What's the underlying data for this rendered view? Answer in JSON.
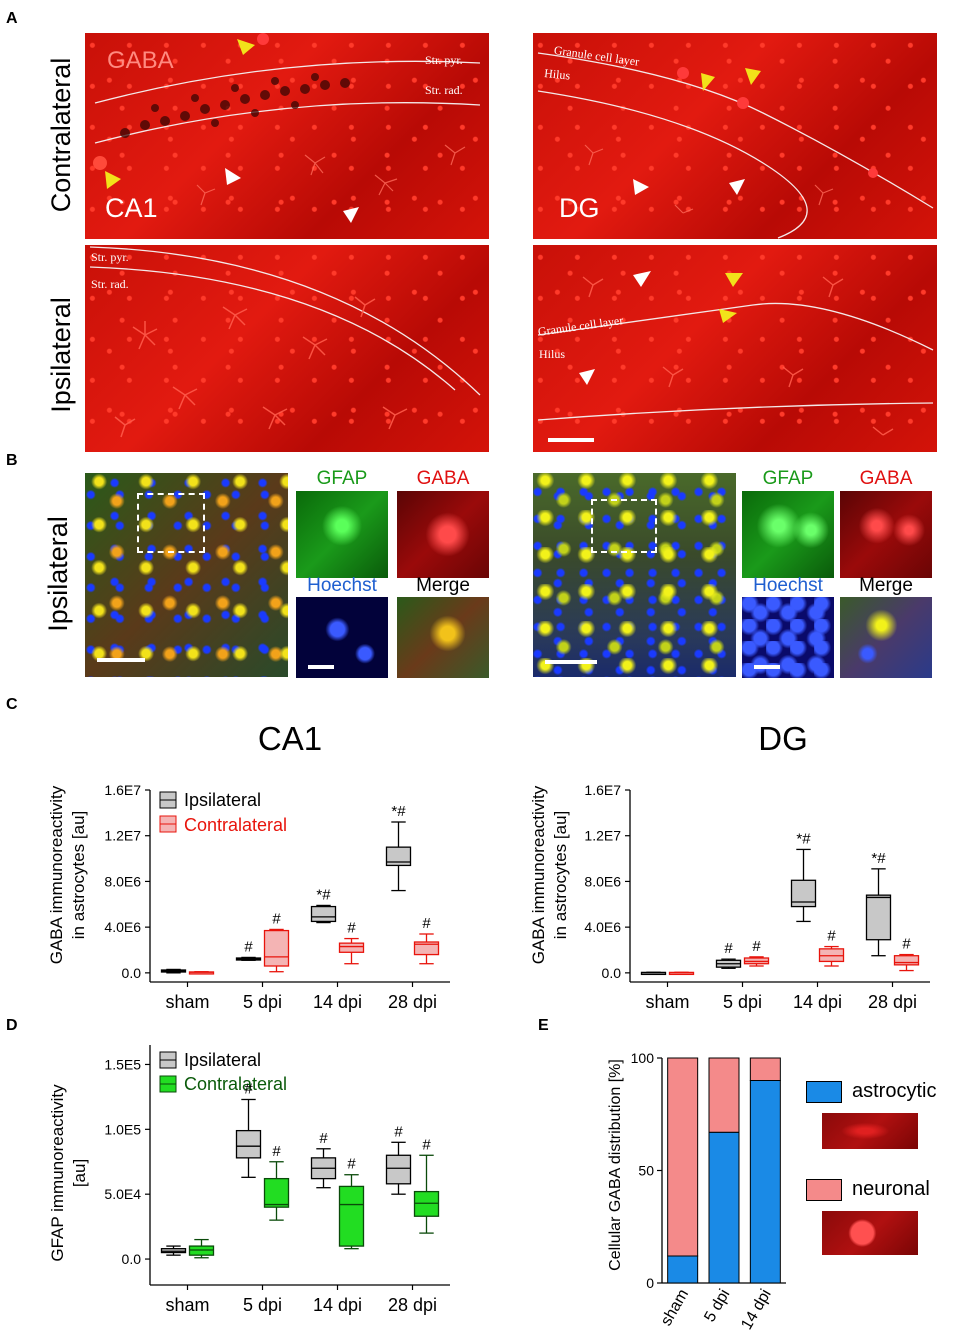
{
  "panels": {
    "A": "A",
    "B": "B",
    "C": "C",
    "D": "D",
    "E": "E"
  },
  "panelA": {
    "row_labels": [
      "Contralateral",
      "Ipsilateral"
    ],
    "gaba_label": "GABA",
    "ca1_label": "CA1",
    "dg_label": "DG",
    "ca1_layers": [
      "Str. pyr.",
      "Str. rad."
    ],
    "dg_layers": [
      "Granule cell layer",
      "Hilus"
    ]
  },
  "panelB": {
    "row_label": "Ipsilateral",
    "tiles": [
      "GFAP",
      "GABA",
      "Hoechst",
      "Merge"
    ],
    "tile_colors": [
      "#1a9a1a",
      "#e01010",
      "#1f5fd0",
      "#000000"
    ]
  },
  "panelC": {
    "ca1_title": "CA1",
    "dg_title": "DG",
    "ylabel_line1": "GABA immunoreactivity",
    "ylabel_line2": "in astrocytes [au]",
    "legend": [
      "Ipsilateral",
      "Contralateral"
    ],
    "legend_colors": [
      "#000000",
      "#e8140c"
    ]
  },
  "panelD": {
    "ylabel_line1": "GFAP immunoreactivity",
    "ylabel_line2": "[au]",
    "legend": [
      "Ipsilateral",
      "Contralateral"
    ],
    "legend_colors": [
      "#000000",
      "#0a5a0a"
    ]
  },
  "panelE": {
    "ylabel": "Cellular GABA distribution [%]",
    "legend": [
      "astrocytic",
      "neuronal"
    ]
  },
  "colors": {
    "gray_box": "#c8c8c8",
    "red_box": "#f4b4b4",
    "red_line": "#e8140c",
    "green_box": "#22dd22",
    "green_line": "#0a4a0a",
    "astro": "#1a8ae6",
    "neuro": "#f48a8a"
  },
  "chart_data": [
    {
      "type": "box",
      "title": "CA1",
      "ylabel": "GABA immunoreactivity in astrocytes [au]",
      "categories": [
        "sham",
        "5 dpi",
        "14 dpi",
        "28 dpi"
      ],
      "ylim": [
        -800000,
        16000000
      ],
      "yticks": [
        "0.0",
        "4.0E6",
        "8.0E6",
        "1.2E7",
        "1.6E7"
      ],
      "ytick_values": [
        0,
        4000000,
        8000000,
        12000000,
        16000000
      ],
      "series": [
        {
          "name": "Ipsilateral",
          "boxes": [
            {
              "min": 0,
              "q1": 80000,
              "median": 150000,
              "q3": 250000,
              "max": 300000,
              "mark": ""
            },
            {
              "min": 1100000,
              "q1": 1150000,
              "median": 1200000,
              "q3": 1300000,
              "max": 1350000,
              "mark": "#"
            },
            {
              "min": 4400000,
              "q1": 4500000,
              "median": 4900000,
              "q3": 5800000,
              "max": 5900000,
              "mark": "*#"
            },
            {
              "min": 7200000,
              "q1": 9400000,
              "median": 9700000,
              "q3": 11000000,
              "max": 13200000,
              "mark": "*#"
            }
          ]
        },
        {
          "name": "Contralateral",
          "boxes": [
            {
              "min": 0,
              "q1": 20000,
              "median": 50000,
              "q3": 80000,
              "max": 100000,
              "mark": ""
            },
            {
              "min": 100000,
              "q1": 600000,
              "median": 1400000,
              "q3": 3700000,
              "max": 3800000,
              "mark": "#"
            },
            {
              "min": 800000,
              "q1": 1800000,
              "median": 2300000,
              "q3": 2600000,
              "max": 3000000,
              "mark": "#"
            },
            {
              "min": 800000,
              "q1": 1600000,
              "median": 2500000,
              "q3": 2700000,
              "max": 3400000,
              "mark": "#"
            }
          ]
        }
      ]
    },
    {
      "type": "box",
      "title": "DG",
      "ylabel": "GABA immunoreactivity in astrocytes [au]",
      "categories": [
        "sham",
        "5 dpi",
        "14 dpi",
        "28 dpi"
      ],
      "ylim": [
        -800000,
        16000000
      ],
      "yticks": [
        "0.0",
        "4.0E6",
        "8.0E6",
        "1.2E7",
        "1.6E7"
      ],
      "ytick_values": [
        0,
        4000000,
        8000000,
        12000000,
        16000000
      ],
      "series": [
        {
          "name": "Ipsilateral",
          "boxes": [
            {
              "min": 0,
              "q1": 10000,
              "median": 20000,
              "q3": 40000,
              "max": 50000,
              "mark": ""
            },
            {
              "min": 400000,
              "q1": 500000,
              "median": 800000,
              "q3": 1100000,
              "max": 1200000,
              "mark": "#"
            },
            {
              "min": 4500000,
              "q1": 5800000,
              "median": 6200000,
              "q3": 8100000,
              "max": 10800000,
              "mark": "*#"
            },
            {
              "min": 1500000,
              "q1": 2900000,
              "median": 6600000,
              "q3": 6800000,
              "max": 9100000,
              "mark": "*#"
            }
          ]
        },
        {
          "name": "Contralateral",
          "boxes": [
            {
              "min": 0,
              "q1": 10000,
              "median": 20000,
              "q3": 40000,
              "max": 50000,
              "mark": ""
            },
            {
              "min": 600000,
              "q1": 800000,
              "median": 1000000,
              "q3": 1300000,
              "max": 1400000,
              "mark": "#"
            },
            {
              "min": 600000,
              "q1": 1000000,
              "median": 1500000,
              "q3": 2100000,
              "max": 2300000,
              "mark": "#"
            },
            {
              "min": 200000,
              "q1": 700000,
              "median": 900000,
              "q3": 1500000,
              "max": 1600000,
              "mark": "#"
            }
          ]
        }
      ]
    },
    {
      "type": "box",
      "title": "",
      "ylabel": "GFAP immunoreactivity [au]",
      "categories": [
        "sham",
        "5 dpi",
        "14 dpi",
        "28 dpi"
      ],
      "ylim": [
        -20000,
        165000
      ],
      "yticks": [
        "0.0",
        "5.0E4",
        "1.0E5",
        "1.5E5"
      ],
      "ytick_values": [
        0,
        50000,
        100000,
        150000
      ],
      "series": [
        {
          "name": "Ipsilateral",
          "boxes": [
            {
              "min": 3000,
              "q1": 5000,
              "median": 6000,
              "q3": 8000,
              "max": 10000,
              "mark": ""
            },
            {
              "min": 63000,
              "q1": 78000,
              "median": 87000,
              "q3": 99000,
              "max": 123000,
              "mark": "#"
            },
            {
              "min": 55000,
              "q1": 62000,
              "median": 70000,
              "q3": 78000,
              "max": 85000,
              "mark": "#"
            },
            {
              "min": 50000,
              "q1": 58000,
              "median": 70000,
              "q3": 80000,
              "max": 90000,
              "mark": "#"
            }
          ]
        },
        {
          "name": "Contralateral",
          "boxes": [
            {
              "min": 1000,
              "q1": 3000,
              "median": 7000,
              "q3": 10000,
              "max": 15000,
              "mark": ""
            },
            {
              "min": 30000,
              "q1": 40000,
              "median": 42000,
              "q3": 62000,
              "max": 75000,
              "mark": "#"
            },
            {
              "min": 8000,
              "q1": 10000,
              "median": 42000,
              "q3": 56000,
              "max": 65000,
              "mark": "#"
            },
            {
              "min": 20000,
              "q1": 33000,
              "median": 43000,
              "q3": 52000,
              "max": 80000,
              "mark": "#"
            }
          ]
        }
      ]
    },
    {
      "type": "bar",
      "stacked": true,
      "ylabel": "Cellular GABA distribution [%]",
      "categories": [
        "sham",
        "5 dpi",
        "14 dpi"
      ],
      "ylim": [
        0,
        100
      ],
      "yticks": [
        "0",
        "50",
        "100"
      ],
      "ytick_values": [
        0,
        50,
        100
      ],
      "series": [
        {
          "name": "astrocytic",
          "values": [
            12,
            67,
            90
          ]
        },
        {
          "name": "neuronal",
          "values": [
            88,
            33,
            10
          ]
        }
      ]
    }
  ]
}
